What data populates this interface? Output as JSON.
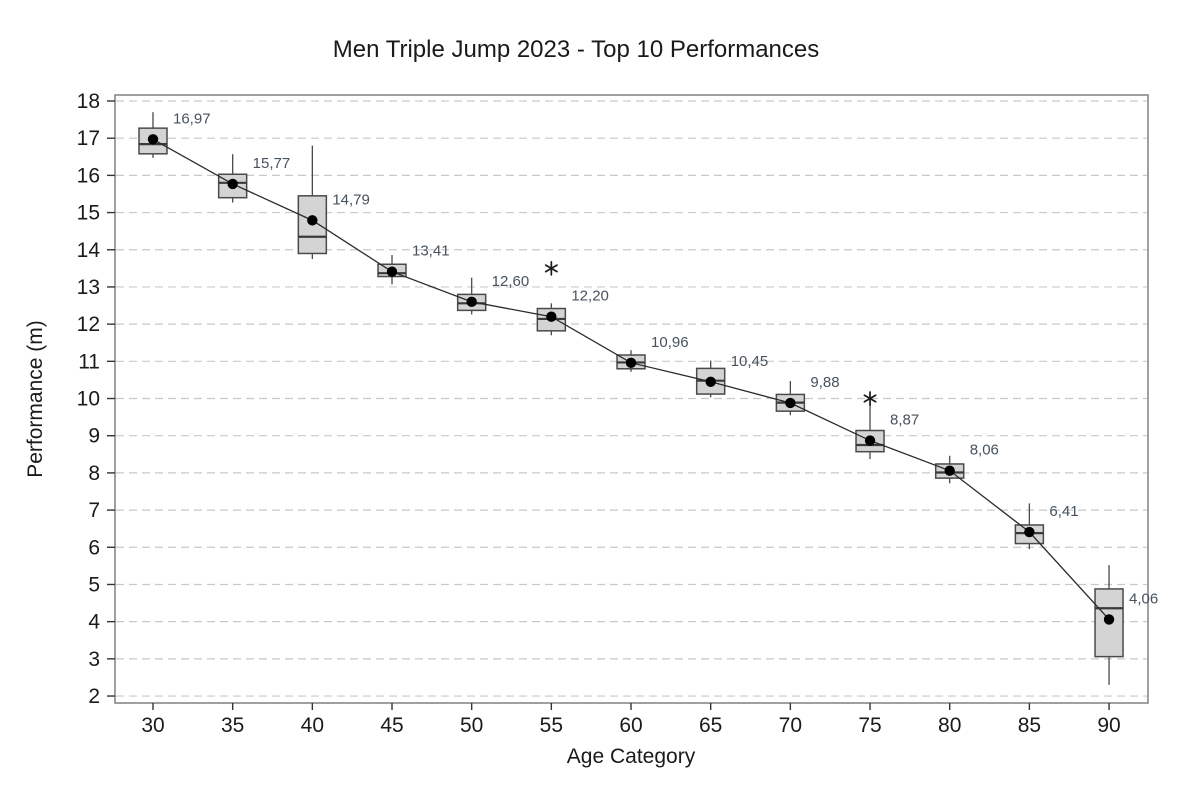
{
  "chart_data": {
    "type": "boxplot",
    "title": "Men Triple Jump 2023 - Top 10 Performances",
    "xlabel": "Age Category",
    "ylabel": "Performance (m)",
    "ylim": [
      2,
      18
    ],
    "ytick_step": 1,
    "yticks": [
      2,
      3,
      4,
      5,
      6,
      7,
      8,
      9,
      10,
      11,
      12,
      13,
      14,
      15,
      16,
      17,
      18
    ],
    "grid": "horizontal-dashed",
    "legend": "none",
    "categories": [
      "30",
      "35",
      "40",
      "45",
      "50",
      "55",
      "60",
      "65",
      "70",
      "75",
      "80",
      "85",
      "90"
    ],
    "series": [
      {
        "category": "30",
        "mean": 16.97,
        "mean_label": "16,97",
        "median": 16.84,
        "q1": 16.58,
        "q3": 17.27,
        "whisker_low": 16.47,
        "whisker_high": 17.7,
        "outliers": []
      },
      {
        "category": "35",
        "mean": 15.77,
        "mean_label": "15,77",
        "median": 15.8,
        "q1": 15.4,
        "q3": 16.03,
        "whisker_low": 15.27,
        "whisker_high": 16.57,
        "outliers": []
      },
      {
        "category": "40",
        "mean": 14.79,
        "mean_label": "14,79",
        "median": 14.35,
        "q1": 13.9,
        "q3": 15.45,
        "whisker_low": 13.75,
        "whisker_high": 16.8,
        "outliers": []
      },
      {
        "category": "45",
        "mean": 13.41,
        "mean_label": "13,41",
        "median": 13.37,
        "q1": 13.28,
        "q3": 13.61,
        "whisker_low": 13.07,
        "whisker_high": 13.86,
        "outliers": []
      },
      {
        "category": "50",
        "mean": 12.6,
        "mean_label": "12,60",
        "median": 12.56,
        "q1": 12.37,
        "q3": 12.8,
        "whisker_low": 12.26,
        "whisker_high": 13.25,
        "outliers": []
      },
      {
        "category": "55",
        "mean": 12.2,
        "mean_label": "12,20",
        "median": 12.14,
        "q1": 11.82,
        "q3": 12.42,
        "whisker_low": 11.7,
        "whisker_high": 12.56,
        "outliers": [
          13.5
        ]
      },
      {
        "category": "60",
        "mean": 10.96,
        "mean_label": "10,96",
        "median": 10.97,
        "q1": 10.8,
        "q3": 11.17,
        "whisker_low": 10.72,
        "whisker_high": 11.3,
        "outliers": []
      },
      {
        "category": "65",
        "mean": 10.45,
        "mean_label": "10,45",
        "median": 10.48,
        "q1": 10.12,
        "q3": 10.81,
        "whisker_low": 10.03,
        "whisker_high": 11.02,
        "outliers": []
      },
      {
        "category": "70",
        "mean": 9.88,
        "mean_label": "9,88",
        "median": 9.89,
        "q1": 9.66,
        "q3": 10.11,
        "whisker_low": 9.55,
        "whisker_high": 10.47,
        "outliers": []
      },
      {
        "category": "75",
        "mean": 8.87,
        "mean_label": "8,87",
        "median": 8.75,
        "q1": 8.57,
        "q3": 9.14,
        "whisker_low": 8.37,
        "whisker_high": 9.83,
        "outliers": [
          10.0
        ]
      },
      {
        "category": "80",
        "mean": 8.06,
        "mean_label": "8,06",
        "median": 8.01,
        "q1": 7.86,
        "q3": 8.24,
        "whisker_low": 7.72,
        "whisker_high": 8.46,
        "outliers": []
      },
      {
        "category": "85",
        "mean": 6.41,
        "mean_label": "6,41",
        "median": 6.38,
        "q1": 6.1,
        "q3": 6.6,
        "whisker_low": 5.95,
        "whisker_high": 7.18,
        "outliers": []
      },
      {
        "category": "90",
        "mean": 4.06,
        "mean_label": "4,06",
        "median": 4.36,
        "q1": 3.06,
        "q3": 4.88,
        "whisker_low": 2.3,
        "whisker_high": 5.52,
        "outliers": []
      }
    ],
    "colors": {
      "background": "#ffffff",
      "box_fill": "#d4d4d4",
      "box_border": "#4a4a4a",
      "median_line": "#3a3a3a",
      "whisker": "#4a4a4a",
      "mean_line": "#2b2b2b",
      "mean_dot": "#000000",
      "outlier": "#1a1a1a",
      "value_label_text": "#46525e",
      "grid_line": "#c9c9c9",
      "frame": "#808080",
      "tick": "#333333",
      "text": "#1a1a1a"
    }
  }
}
